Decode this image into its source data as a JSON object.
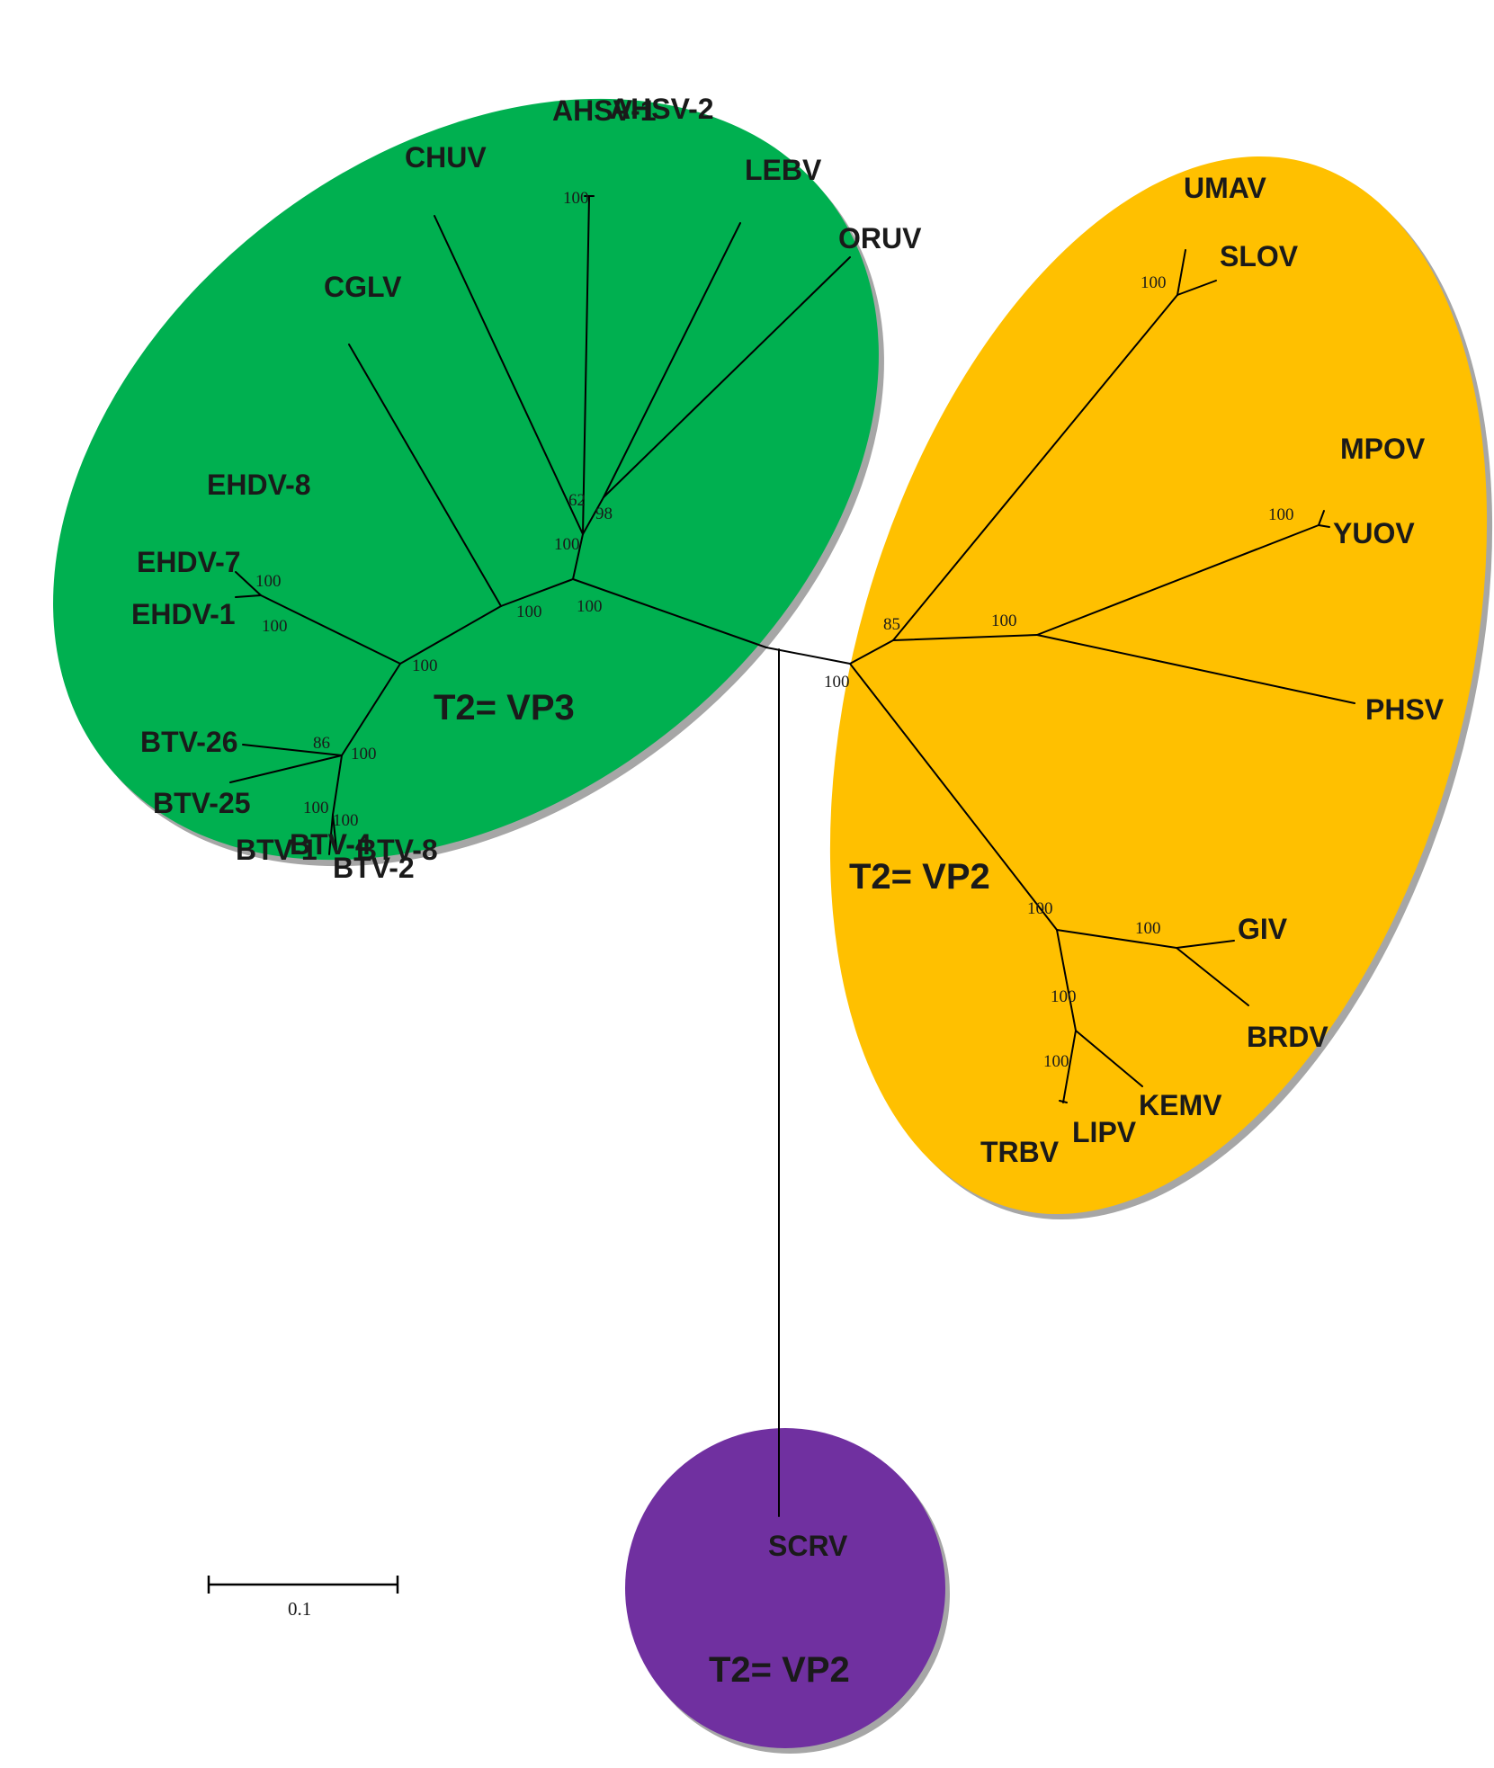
{
  "colors": {
    "vp3_clade": "#00b050",
    "vp2_clade": "#ffc000",
    "scrv_clade": "#7030a0",
    "clade_shadow": "#a6a6a6",
    "branch": "#000000"
  },
  "groups": {
    "vp3": "T2= VP3",
    "vp2": "T2= VP2",
    "scrv": "T2= VP2"
  },
  "taxa": {
    "ahsv1": "AHSV-1",
    "ahsv2": "AHSV-2",
    "chuv": "CHUV",
    "lebv": "LEBV",
    "oruv": "ORUV",
    "cglv": "CGLV",
    "ehdv8": "EHDV-8",
    "ehdv7": "EHDV-7",
    "ehdv1": "EHDV-1",
    "btv26": "BTV-26",
    "btv25": "BTV-25",
    "btv1": "BTV-1",
    "btv4": "BTV-4",
    "btv8": "BTV-8",
    "btv2": "BTV-2",
    "umav": "UMAV",
    "slov": "SLOV",
    "mpov": "MPOV",
    "yuov": "YUOV",
    "phsv": "PHSV",
    "giv": "GIV",
    "brdv": "BRDV",
    "kemv": "KEMV",
    "lipv": "LIPV",
    "trbv": "TRBV",
    "scrv": "SCRV"
  },
  "support": {
    "ahsv": "100",
    "chuv_node": "62",
    "lebv_oruv": "98",
    "afr_clade": "100",
    "cglv_node": "100",
    "vp3_root": "100",
    "ehdv7_1": "100",
    "ehdv_clade": "100",
    "culicoides": "100",
    "btv_node": "86",
    "btv_clade": "100",
    "btv_sub1": "100",
    "btv_sub2": "100",
    "vp2_root": "100",
    "tick_clade": "85",
    "umav_slov": "100",
    "mpov_yuov_phsv": "100",
    "mpov_yuov": "100",
    "kemv_clade": "100",
    "giv_brdv_node": "100",
    "giv_brdv": "100",
    "kemv_node": "100",
    "lipv_trbv": "100"
  },
  "scale_bar": {
    "label": "0.1"
  }
}
